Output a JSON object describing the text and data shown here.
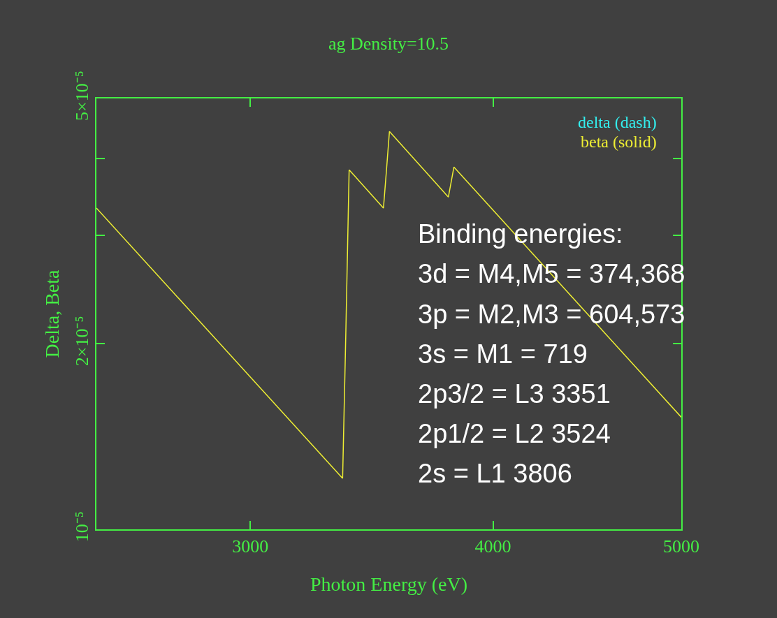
{
  "chart_data": {
    "type": "line",
    "title": "ag Density=10.5",
    "xlabel": "Photon Energy (eV)",
    "ylabel": "Delta, Beta",
    "log": "xy",
    "grid": false,
    "legend": "top right",
    "marker": "none",
    "xlim": [
      2500,
      5000
    ],
    "xticks": [
      3000,
      4000,
      5000
    ],
    "ylim": [
      1e-05,
      5e-05
    ],
    "yticks": [
      {
        "value": 1e-05,
        "label": "10⁻⁵"
      },
      {
        "value": 2e-05,
        "label": "2×10⁻⁵"
      },
      {
        "value": 3e-05,
        "label": null
      },
      {
        "value": 4e-05,
        "label": null
      },
      {
        "value": 5e-05,
        "label": "5×10⁻⁵"
      }
    ],
    "x": [
      2500,
      3347,
      3360,
      3373,
      3513,
      3525,
      3538,
      3794,
      3819,
      5000
    ],
    "series": [
      {
        "name": "delta (dash)",
        "color": "#33eeee",
        "line_style": "dashed",
        "values": [
          null,
          null,
          null,
          null,
          null,
          null,
          null,
          null,
          null,
          null
        ]
      },
      {
        "name": "beta (solid)",
        "color": "#eeee33",
        "line_style": "solid",
        "values": [
          3.32e-05,
          1.21e-05,
          2.1e-05,
          3.83e-05,
          3.32e-05,
          3.8e-05,
          4.42e-05,
          3.46e-05,
          3.87e-05,
          1.52e-05
        ]
      }
    ],
    "annotations": [
      "Binding energies:",
      "3d = M4,M5 = 374,368",
      "3p = M2,M3 = 604,573",
      "3s = M1 = 719",
      "2p3/2 = L3 3351",
      "2p1/2 = L2 3524",
      "2s = L1 3806"
    ]
  }
}
